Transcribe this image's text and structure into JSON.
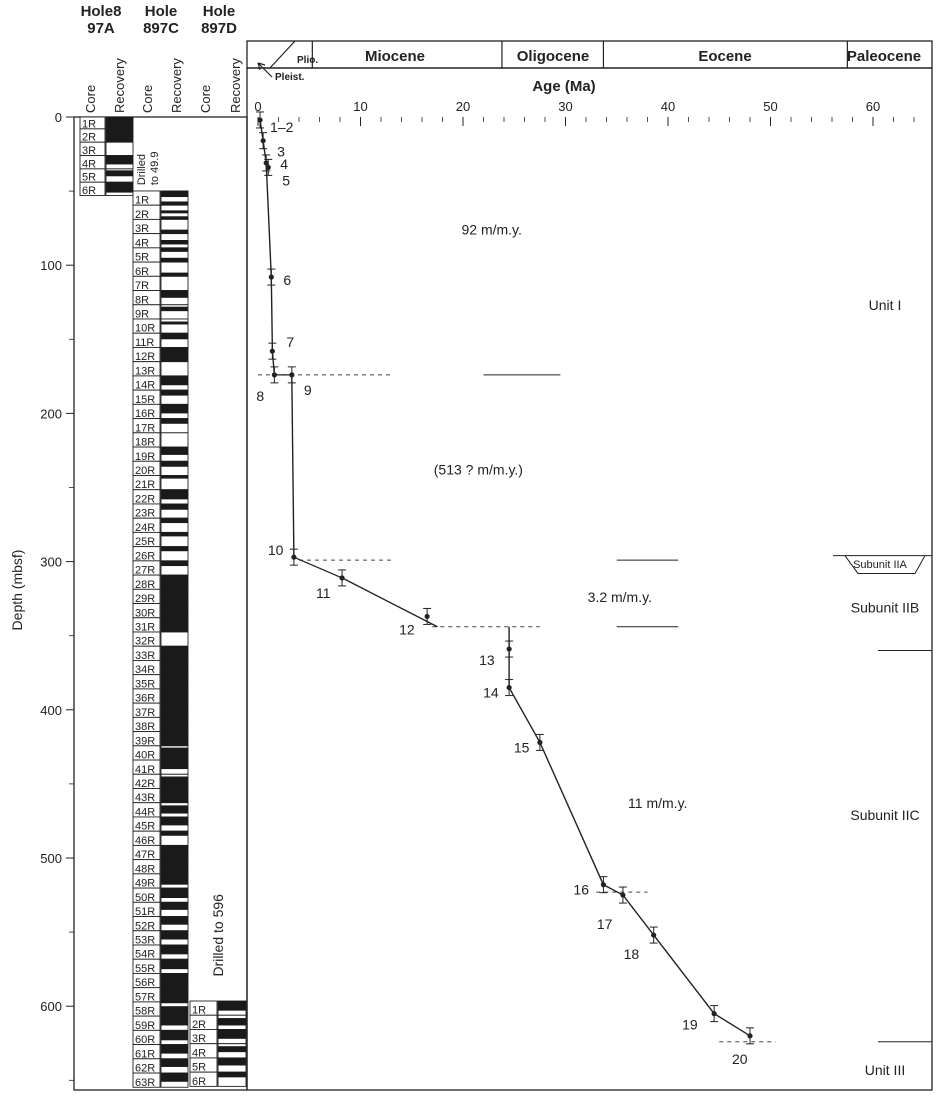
{
  "holes": [
    {
      "title": [
        "Hole8",
        "97A"
      ],
      "core_label": "Core",
      "recovery_label": "Recovery",
      "cores": [
        {
          "label": "1R",
          "top": 0,
          "bottom": 8,
          "recovered": [
            [
              0,
              8
            ]
          ]
        },
        {
          "label": "2R",
          "top": 8,
          "bottom": 17,
          "recovered": [
            [
              8,
              17
            ]
          ]
        },
        {
          "label": "3R",
          "top": 17,
          "bottom": 26,
          "recovered": []
        },
        {
          "label": "4R",
          "top": 26,
          "bottom": 35,
          "recovered": [
            [
              26,
              32
            ]
          ]
        },
        {
          "label": "5R",
          "top": 35,
          "bottom": 44,
          "recovered": [
            [
              36,
              40
            ]
          ]
        },
        {
          "label": "6R",
          "top": 44,
          "bottom": 53,
          "recovered": [
            [
              44,
              51
            ]
          ]
        }
      ],
      "note": ""
    },
    {
      "title": [
        "Hole",
        "897C"
      ],
      "core_label": "Core",
      "recovery_label": "Recovery",
      "drilled_note": [
        "Drilled",
        "to 49.9"
      ],
      "cores": [
        {
          "label": "1R",
          "top": 49.9,
          "bottom": 59.5
        },
        {
          "label": "2R",
          "top": 59.5,
          "bottom": 69.1
        },
        {
          "label": "3R",
          "top": 69.1,
          "bottom": 78.7
        },
        {
          "label": "4R",
          "top": 78.7,
          "bottom": 88.3
        },
        {
          "label": "5R",
          "top": 88.3,
          "bottom": 97.9
        },
        {
          "label": "6R",
          "top": 97.9,
          "bottom": 107.5
        },
        {
          "label": "7R",
          "top": 107.5,
          "bottom": 117.1
        },
        {
          "label": "8R",
          "top": 117.1,
          "bottom": 126.7
        },
        {
          "label": "9R",
          "top": 126.7,
          "bottom": 136.3
        },
        {
          "label": "10R",
          "top": 136.3,
          "bottom": 145.9
        },
        {
          "label": "11R",
          "top": 145.9,
          "bottom": 155.5
        },
        {
          "label": "12R",
          "top": 155.5,
          "bottom": 165.1
        },
        {
          "label": "13R",
          "top": 165.1,
          "bottom": 174.7
        },
        {
          "label": "14R",
          "top": 174.7,
          "bottom": 184.3
        },
        {
          "label": "15R",
          "top": 184.3,
          "bottom": 193.9
        },
        {
          "label": "16R",
          "top": 193.9,
          "bottom": 203.5
        },
        {
          "label": "17R",
          "top": 203.5,
          "bottom": 213.1
        },
        {
          "label": "18R",
          "top": 213.1,
          "bottom": 222.7
        },
        {
          "label": "19R",
          "top": 222.7,
          "bottom": 232.3
        },
        {
          "label": "20R",
          "top": 232.3,
          "bottom": 241.9
        },
        {
          "label": "21R",
          "top": 241.9,
          "bottom": 251.5
        },
        {
          "label": "22R",
          "top": 251.5,
          "bottom": 261.1
        },
        {
          "label": "23R",
          "top": 261.1,
          "bottom": 270.7
        },
        {
          "label": "24R",
          "top": 270.7,
          "bottom": 280.3
        },
        {
          "label": "25R",
          "top": 280.3,
          "bottom": 289.9
        },
        {
          "label": "26R",
          "top": 289.9,
          "bottom": 299.5
        },
        {
          "label": "27R",
          "top": 299.5,
          "bottom": 309.1
        },
        {
          "label": "28R",
          "top": 309.1,
          "bottom": 318.7
        },
        {
          "label": "29R",
          "top": 318.7,
          "bottom": 328.3
        },
        {
          "label": "30R",
          "top": 328.3,
          "bottom": 337.9
        },
        {
          "label": "31R",
          "top": 337.9,
          "bottom": 347.5
        },
        {
          "label": "32R",
          "top": 347.5,
          "bottom": 357.1
        },
        {
          "label": "33R",
          "top": 357.1,
          "bottom": 366.7
        },
        {
          "label": "34R",
          "top": 366.7,
          "bottom": 376.3
        },
        {
          "label": "35R",
          "top": 376.3,
          "bottom": 385.9
        },
        {
          "label": "36R",
          "top": 385.9,
          "bottom": 395.5
        },
        {
          "label": "37R",
          "top": 395.5,
          "bottom": 405.1
        },
        {
          "label": "38R",
          "top": 405.1,
          "bottom": 414.7
        },
        {
          "label": "39R",
          "top": 414.7,
          "bottom": 424.3
        },
        {
          "label": "40R",
          "top": 424.3,
          "bottom": 433.9
        },
        {
          "label": "41R",
          "top": 433.9,
          "bottom": 443.5
        },
        {
          "label": "42R",
          "top": 443.5,
          "bottom": 453.1
        },
        {
          "label": "43R",
          "top": 453.1,
          "bottom": 462.7
        },
        {
          "label": "44R",
          "top": 462.7,
          "bottom": 472.3
        },
        {
          "label": "45R",
          "top": 472.3,
          "bottom": 481.9
        },
        {
          "label": "46R",
          "top": 481.9,
          "bottom": 491.5
        },
        {
          "label": "47R",
          "top": 491.5,
          "bottom": 501.1
        },
        {
          "label": "48R",
          "top": 501.1,
          "bottom": 510.7
        },
        {
          "label": "49R",
          "top": 510.7,
          "bottom": 520.3
        },
        {
          "label": "50R",
          "top": 520.3,
          "bottom": 529.9
        },
        {
          "label": "51R",
          "top": 529.9,
          "bottom": 539.5
        },
        {
          "label": "52R",
          "top": 539.5,
          "bottom": 549.1
        },
        {
          "label": "53R",
          "top": 549.1,
          "bottom": 558.7
        },
        {
          "label": "54R",
          "top": 558.7,
          "bottom": 568.3
        },
        {
          "label": "55R",
          "top": 568.3,
          "bottom": 577.9
        },
        {
          "label": "56R",
          "top": 577.9,
          "bottom": 587.5
        },
        {
          "label": "57R",
          "top": 587.5,
          "bottom": 597.1
        },
        {
          "label": "58R",
          "top": 597.1,
          "bottom": 606.7
        },
        {
          "label": "59R",
          "top": 606.7,
          "bottom": 616.3
        },
        {
          "label": "60R",
          "top": 616.3,
          "bottom": 625.9
        },
        {
          "label": "61R",
          "top": 625.9,
          "bottom": 635.5
        },
        {
          "label": "62R",
          "top": 635.5,
          "bottom": 645.1
        },
        {
          "label": "63R",
          "top": 645.1,
          "bottom": 654.7
        }
      ],
      "recovered": [
        [
          49.9,
          54
        ],
        [
          57,
          59.5
        ],
        [
          63,
          65
        ],
        [
          67,
          69.1
        ],
        [
          76,
          78.7
        ],
        [
          83,
          86
        ],
        [
          88.3,
          91
        ],
        [
          95,
          97.9
        ],
        [
          105,
          107.5
        ],
        [
          117.1,
          122
        ],
        [
          128,
          131
        ],
        [
          138,
          140
        ],
        [
          145.9,
          150
        ],
        [
          155.5,
          165.1
        ],
        [
          174.7,
          181
        ],
        [
          184.3,
          188
        ],
        [
          193.9,
          200
        ],
        [
          203.5,
          207
        ],
        [
          222.7,
          228
        ],
        [
          232.3,
          236
        ],
        [
          241.9,
          244
        ],
        [
          251.5,
          258
        ],
        [
          261.1,
          265
        ],
        [
          270.7,
          274
        ],
        [
          280.3,
          283
        ],
        [
          289.9,
          293
        ],
        [
          299.5,
          303
        ],
        [
          309.1,
          347.5
        ],
        [
          357.1,
          424.3
        ],
        [
          425.5,
          440
        ],
        [
          445,
          462.7
        ],
        [
          464.5,
          470
        ],
        [
          472.3,
          478
        ],
        [
          481.9,
          485
        ],
        [
          491.5,
          518
        ],
        [
          520.3,
          527
        ],
        [
          529.9,
          535
        ],
        [
          539.5,
          545
        ],
        [
          549.1,
          555
        ],
        [
          558.7,
          565
        ],
        [
          568.3,
          575
        ],
        [
          577.9,
          598
        ],
        [
          600,
          606.7
        ],
        [
          606.7,
          613
        ],
        [
          616.3,
          623
        ],
        [
          625.9,
          632
        ],
        [
          635.5,
          641
        ],
        [
          645.1,
          651
        ]
      ]
    },
    {
      "title": [
        "Hole",
        "897D"
      ],
      "core_label": "Core",
      "recovery_label": "Recovery",
      "drilled_note": [
        "Drilled to 596"
      ],
      "cores": [
        {
          "label": "1R",
          "top": 596.5,
          "bottom": 606.1
        },
        {
          "label": "2R",
          "top": 606.1,
          "bottom": 615.7
        },
        {
          "label": "3R",
          "top": 615.7,
          "bottom": 625.3
        },
        {
          "label": "4R",
          "top": 625.3,
          "bottom": 634.9
        },
        {
          "label": "5R",
          "top": 634.9,
          "bottom": 644.5
        },
        {
          "label": "6R",
          "top": 644.5,
          "bottom": 654.1
        }
      ],
      "recovered": [
        [
          596.5,
          603
        ],
        [
          608,
          613
        ],
        [
          615.7,
          622
        ],
        [
          627,
          631
        ],
        [
          634.9,
          640
        ],
        [
          644.5,
          648
        ]
      ]
    }
  ],
  "epochs": [
    "Plio.",
    "Pleist.",
    "Miocene",
    "Oligocene",
    "Eocene",
    "Paleocene"
  ],
  "chart_data": {
    "type": "line",
    "xlabel": "Age (Ma)",
    "ylabel": "Depth (mbsf)",
    "xlim": [
      -0.5,
      66
    ],
    "ylim": [
      0,
      660
    ],
    "y_reversed": true,
    "xticks": [
      0,
      10,
      20,
      30,
      40,
      50,
      60
    ],
    "yticks": [
      0,
      100,
      200,
      300,
      400,
      500,
      600
    ],
    "epoch_boundaries": [
      {
        "name": "Pleist.",
        "from": 0,
        "to": 1.8
      },
      {
        "name": "Plio.",
        "from": 1.8,
        "to": 5.3
      },
      {
        "name": "Miocene",
        "from": 5.3,
        "to": 23.8
      },
      {
        "name": "Oligocene",
        "from": 23.8,
        "to": 33.7
      },
      {
        "name": "Eocene",
        "from": 33.7,
        "to": 57.5
      },
      {
        "name": "Paleocene",
        "from": 57.5,
        "to": 66
      }
    ],
    "points": [
      {
        "label": "1–2",
        "age": 0.2,
        "depth": 2
      },
      {
        "label": "3",
        "age": 0.5,
        "depth": 16
      },
      {
        "label": "4",
        "age": 0.8,
        "depth": 31
      },
      {
        "label": "5",
        "age": 1.0,
        "depth": 34
      },
      {
        "label": "6",
        "age": 1.3,
        "depth": 108
      },
      {
        "label": "7",
        "age": 1.4,
        "depth": 158
      },
      {
        "label": "8",
        "age": 1.6,
        "depth": 174
      },
      {
        "label": "9",
        "age": 3.3,
        "depth": 174
      },
      {
        "label": "10",
        "age": 3.5,
        "depth": 297
      },
      {
        "label": "11",
        "age": 8.2,
        "depth": 311
      },
      {
        "label": "12",
        "age": 16.5,
        "depth": 337
      },
      {
        "label": "13",
        "age": 24.5,
        "depth": 359
      },
      {
        "label": "14",
        "age": 24.5,
        "depth": 385
      },
      {
        "label": "15",
        "age": 27.5,
        "depth": 422
      },
      {
        "label": "16",
        "age": 33.7,
        "depth": 518
      },
      {
        "label": "17",
        "age": 35.6,
        "depth": 525
      },
      {
        "label": "18",
        "age": 38.6,
        "depth": 552
      },
      {
        "label": "19",
        "age": 44.5,
        "depth": 605
      },
      {
        "label": "20",
        "age": 48.0,
        "depth": 620
      }
    ],
    "segments": [
      [
        [
          0.2,
          2
        ],
        [
          0.5,
          16
        ],
        [
          0.8,
          31
        ],
        [
          1.3,
          108
        ],
        [
          1.4,
          158
        ],
        [
          1.6,
          174
        ]
      ],
      [
        [
          3.3,
          174
        ],
        [
          3.5,
          297
        ]
      ],
      [
        [
          8.2,
          311
        ],
        [
          17.5,
          344
        ]
      ],
      [
        [
          24.5,
          344
        ],
        [
          24.5,
          385
        ],
        [
          27.5,
          422
        ],
        [
          33.7,
          518
        ],
        [
          35.6,
          525
        ],
        [
          38.6,
          552
        ],
        [
          44.5,
          605
        ],
        [
          48.0,
          620
        ]
      ]
    ],
    "dashed_boundaries": [
      {
        "depth": 174,
        "from_age": 0,
        "to_age": 13
      },
      {
        "depth": 299,
        "from_age": 4,
        "to_age": 13
      },
      {
        "depth": 344,
        "from_age": 17,
        "to_age": 27.5
      },
      {
        "depth": 523,
        "from_age": 33,
        "to_age": 38
      },
      {
        "depth": 624,
        "from_age": 45,
        "to_age": 50.5
      }
    ],
    "solid_boundaries": [
      {
        "depth": 174,
        "from_age": 22,
        "to_age": 29.5
      },
      {
        "depth": 299,
        "from_age": 35,
        "to_age": 41
      },
      {
        "depth": 344,
        "from_age": 35,
        "to_age": 41
      }
    ],
    "rate_annotations": [
      {
        "text": "92 m/m.y.",
        "age": 22.8,
        "depth": 76
      },
      {
        "text": "(513 ? m/m.y.)",
        "age": 21.5,
        "depth": 238
      },
      {
        "text": "3.2 m/m.y.",
        "age": 35.3,
        "depth": 324
      },
      {
        "text": "11 m/m.y.",
        "age": 39,
        "depth": 463
      }
    ],
    "units": [
      {
        "label": "Unit I",
        "depth": 127
      },
      {
        "label": "Subunit IIA",
        "depth": 301
      },
      {
        "label": "Subunit IIB",
        "depth": 331
      },
      {
        "label": "Subunit IIC",
        "depth": 471
      },
      {
        "label": "Unit III",
        "depth": 643
      }
    ],
    "unit_boundaries": [
      360,
      624
    ]
  }
}
